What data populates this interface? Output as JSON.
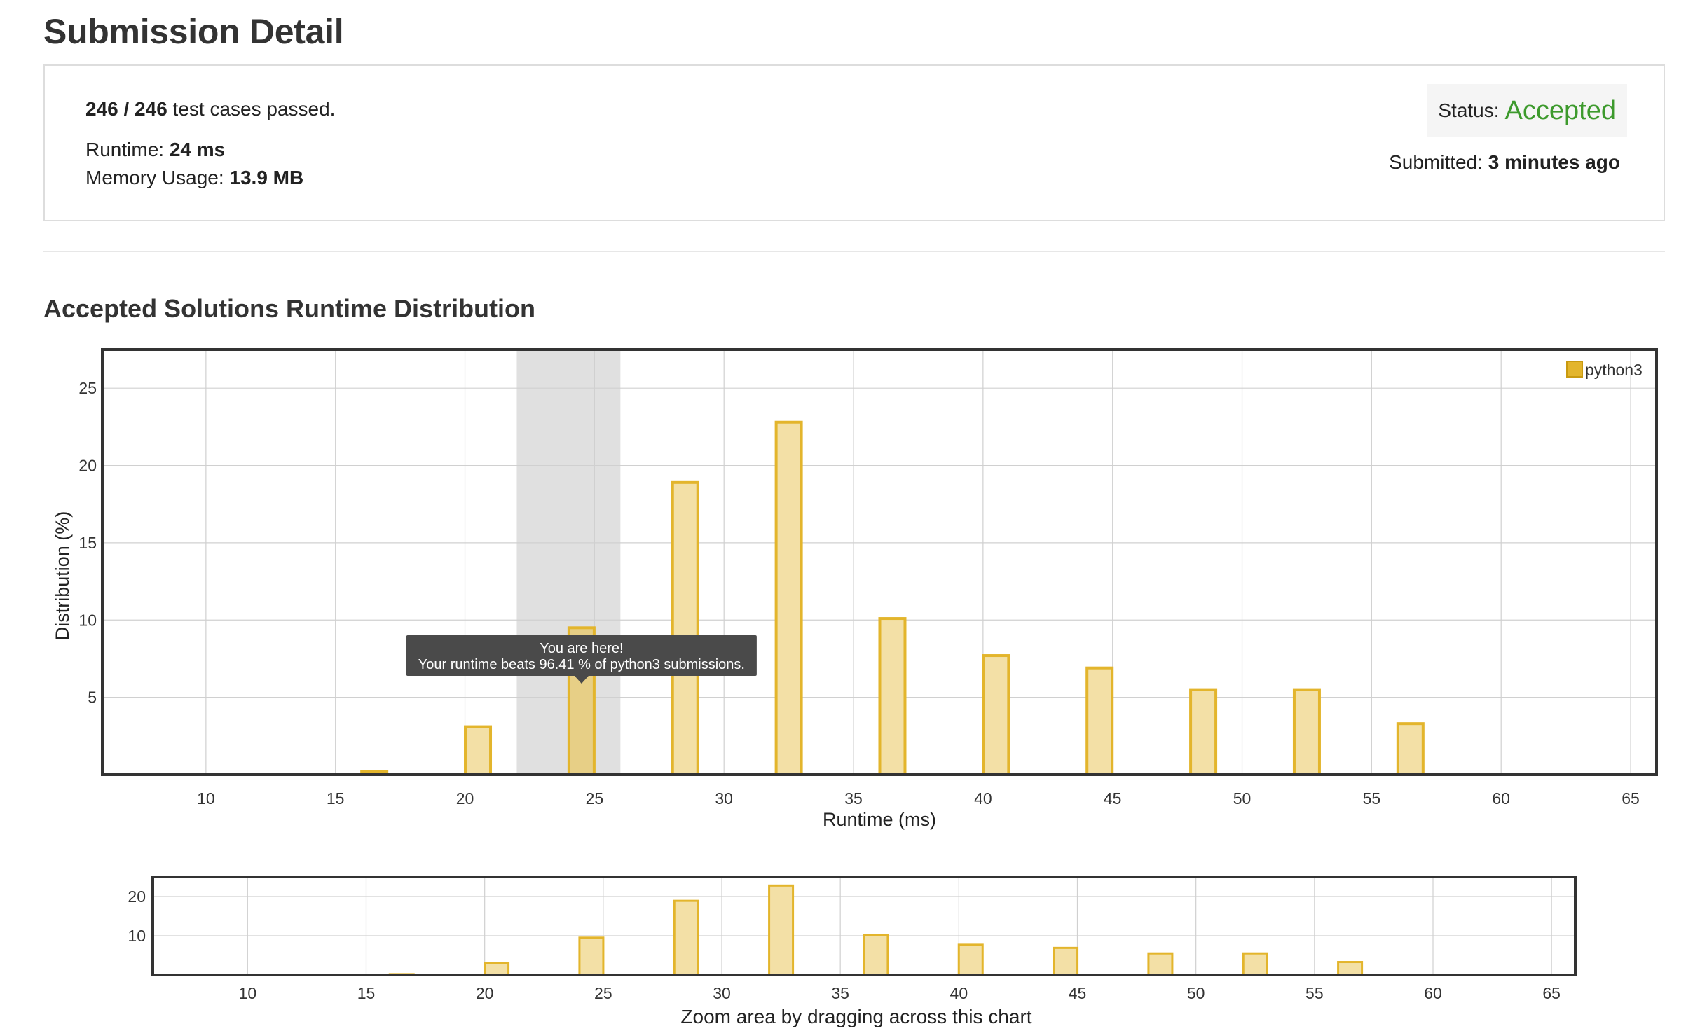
{
  "page": {
    "title": "Submission Detail"
  },
  "summary": {
    "passed_count": "246 / 246",
    "passed_suffix": " test cases passed.",
    "runtime_label": "Runtime: ",
    "runtime_value": "24 ms",
    "memory_label": "Memory Usage: ",
    "memory_value": "13.9 MB",
    "status_label": "Status: ",
    "status_value": "Accepted",
    "submitted_label": "Submitted: ",
    "submitted_value": "3 minutes ago"
  },
  "colors": {
    "accent_green": "#3d9a2d",
    "bar_fill": "#f3e0a6",
    "bar_stroke": "#e3b52c",
    "highlight_band": "#e0e0e0",
    "tooltip_bg": "#4a4a4a"
  },
  "distribution": {
    "section_title": "Accepted Solutions Runtime Distribution",
    "tooltip_line1": "You are here!",
    "tooltip_line2": "Your runtime beats 96.41 % of python3 submissions.",
    "navigator_caption": "Zoom area by dragging across this chart"
  },
  "chart_data": [
    {
      "type": "bar",
      "title": "",
      "xlabel": "Runtime (ms)",
      "ylabel": "Distribution (%)",
      "xlim": [
        6,
        66
      ],
      "ylim": [
        0,
        27.5
      ],
      "xticks": [
        10,
        15,
        20,
        25,
        30,
        35,
        40,
        45,
        50,
        55,
        60,
        65
      ],
      "yticks": [
        5,
        10,
        15,
        20,
        25
      ],
      "grid": true,
      "legend_position": "top-right",
      "highlight_range": [
        22,
        26
      ],
      "highlight_bar_x": 24.5,
      "series": [
        {
          "name": "python3",
          "x": [
            16.5,
            20.5,
            24.5,
            28.5,
            32.5,
            36.5,
            40.5,
            44.5,
            48.5,
            52.5,
            56.5
          ],
          "values": [
            0.2,
            3.1,
            9.5,
            18.9,
            22.8,
            10.1,
            7.7,
            6.9,
            5.5,
            5.5,
            3.3
          ]
        }
      ]
    },
    {
      "type": "bar",
      "title": "",
      "xlabel": "",
      "ylabel": "",
      "xlim": [
        6,
        66
      ],
      "ylim": [
        0,
        25
      ],
      "xticks": [
        10,
        15,
        20,
        25,
        30,
        35,
        40,
        45,
        50,
        55,
        60,
        65
      ],
      "yticks": [
        10,
        20
      ],
      "grid": true,
      "series": [
        {
          "x": [
            16.5,
            20.5,
            24.5,
            28.5,
            32.5,
            36.5,
            40.5,
            44.5,
            48.5,
            52.5,
            56.5
          ],
          "values": [
            0.2,
            3.1,
            9.5,
            18.9,
            22.8,
            10.1,
            7.7,
            6.9,
            5.5,
            5.5,
            3.3
          ]
        }
      ]
    }
  ]
}
